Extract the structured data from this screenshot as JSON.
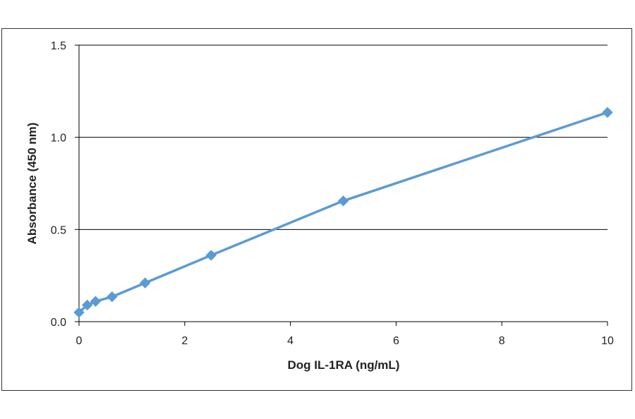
{
  "chart_data": {
    "type": "line",
    "title": "",
    "xlabel": "Dog IL-1RA (ng/mL)",
    "ylabel": "Absorbance  (450 nm)",
    "xlim": [
      0,
      10
    ],
    "ylim": [
      0,
      1.5
    ],
    "x_ticks": [
      "0",
      "2",
      "4",
      "6",
      "8",
      "10"
    ],
    "x_tick_values": [
      0,
      2,
      4,
      6,
      8,
      10
    ],
    "y_ticks": [
      "0.0",
      "0.5",
      "1.0",
      "1.5"
    ],
    "y_tick_values": [
      0,
      0.5,
      1.0,
      1.5
    ],
    "grid": "horizontal",
    "legend": "none",
    "series": [
      {
        "color": "#5b9bd5",
        "marker": "diamond",
        "x": [
          0,
          0.156,
          0.313,
          0.625,
          1.25,
          2.5,
          5,
          10
        ],
        "y": [
          0.05,
          0.09,
          0.11,
          0.135,
          0.21,
          0.36,
          0.655,
          1.135
        ]
      }
    ]
  }
}
